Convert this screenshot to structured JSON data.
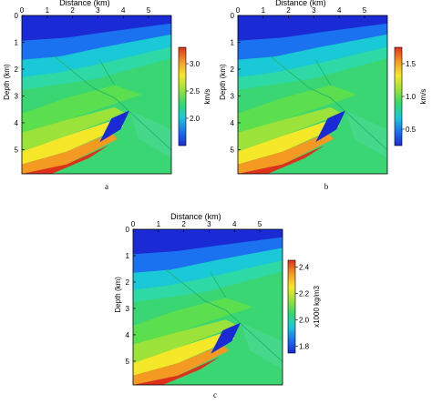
{
  "chart_data": [
    {
      "type": "heatmap",
      "panel_label": "a",
      "xlabel": "Distance (km)",
      "ylabel": "Depth (km)",
      "x_ticks": [
        0,
        1,
        2,
        3,
        4,
        5
      ],
      "y_ticks": [
        0,
        1,
        2,
        3,
        4,
        5
      ],
      "xlim": [
        0,
        5.9
      ],
      "ylim": [
        0,
        5.9
      ],
      "colorbar": {
        "label": "km/s",
        "ticks": [
          "3.0",
          "2.5",
          "2.0"
        ],
        "tick_values": [
          3.0,
          2.5,
          2.0
        ],
        "range": [
          1.5,
          3.3
        ]
      },
      "colormap": [
        "#1a2bd6",
        "#1b72f0",
        "#19c9d8",
        "#35d86b",
        "#9be23a",
        "#f5e828",
        "#f49a23",
        "#e0301b"
      ]
    },
    {
      "type": "heatmap",
      "panel_label": "b",
      "xlabel": "Distance (km)",
      "ylabel": "Depth (km)",
      "x_ticks": [
        0,
        1,
        2,
        3,
        4,
        5
      ],
      "y_ticks": [
        0,
        1,
        2,
        3,
        4,
        5
      ],
      "xlim": [
        0,
        5.9
      ],
      "ylim": [
        0,
        5.9
      ],
      "colorbar": {
        "label": "km/s",
        "ticks": [
          "1.5",
          "1.0",
          "0.5"
        ],
        "tick_values": [
          1.5,
          1.0,
          0.5
        ],
        "range": [
          0.25,
          1.75
        ]
      },
      "colormap": [
        "#1a2bd6",
        "#1b72f0",
        "#19c9d8",
        "#35d86b",
        "#9be23a",
        "#f5e828",
        "#f49a23",
        "#e0301b"
      ]
    },
    {
      "type": "heatmap",
      "panel_label": "c",
      "xlabel": "Distance (km)",
      "ylabel": "Depth (km)",
      "x_ticks": [
        0,
        1,
        2,
        3,
        4,
        5
      ],
      "y_ticks": [
        0,
        1,
        2,
        3,
        4,
        5
      ],
      "xlim": [
        0,
        5.9
      ],
      "ylim": [
        0,
        5.9
      ],
      "colorbar": {
        "label": "x1000 kg/m3",
        "ticks": [
          "2.4",
          "2.2",
          "2.0",
          "1.8"
        ],
        "tick_values": [
          2.4,
          2.2,
          2.0,
          1.8
        ],
        "range": [
          1.75,
          2.45
        ]
      },
      "colormap": [
        "#1a2bd6",
        "#1b72f0",
        "#19c9d8",
        "#35d86b",
        "#9be23a",
        "#f5e828",
        "#f49a23",
        "#e0301b"
      ]
    }
  ]
}
